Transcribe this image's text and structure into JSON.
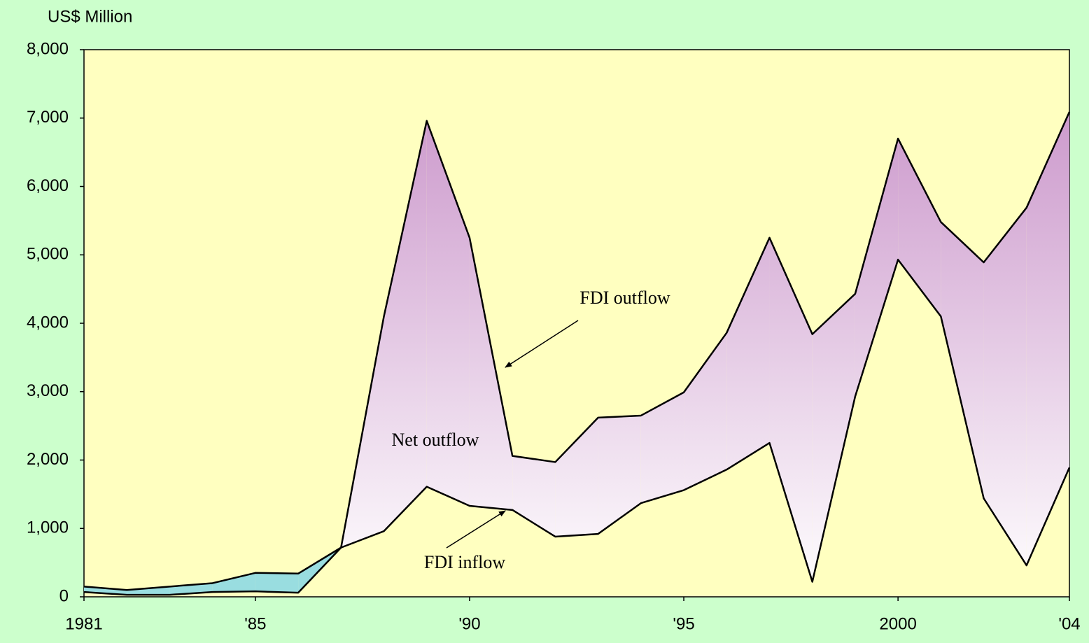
{
  "chart_data": {
    "type": "area_between",
    "y_axis_label": "US$ Million",
    "x": [
      1981,
      1982,
      1983,
      1984,
      1985,
      1986,
      1987,
      1988,
      1989,
      1990,
      1991,
      1992,
      1993,
      1994,
      1995,
      1996,
      1997,
      1998,
      1999,
      2000,
      2001,
      2002,
      2003,
      2004
    ],
    "series": [
      {
        "name": "FDI outflow",
        "color": "#000000",
        "values": [
          70,
          30,
          30,
          70,
          80,
          60,
          720,
          4100,
          6960,
          5250,
          2060,
          1970,
          2620,
          2650,
          2990,
          3860,
          5250,
          3840,
          4430,
          6700,
          5480,
          4890,
          5690,
          7090
        ]
      },
      {
        "name": "FDI inflow",
        "color": "#000000",
        "values": [
          150,
          100,
          150,
          200,
          350,
          340,
          720,
          960,
          1610,
          1330,
          1270,
          880,
          920,
          1370,
          1560,
          1860,
          2250,
          220,
          2930,
          4930,
          4100,
          1440,
          460,
          1890
        ]
      }
    ],
    "net_outflow_label": "Net outflow",
    "net_outflow_color": "#cc99cc",
    "net_inflow_color": "#99dde0",
    "plot_background": "#ffffc0",
    "xlim": [
      1981,
      2004
    ],
    "xticks": [
      1981,
      {
        "value": 1985,
        "label": "'85"
      },
      {
        "value": 1990,
        "label": "'90"
      },
      {
        "value": 1995,
        "label": "'95"
      },
      2000,
      {
        "value": 2004,
        "label": "'04"
      }
    ],
    "ylim": [
      0,
      8000
    ],
    "yticks": [
      0,
      {
        "value": 1000,
        "label": "1,000"
      },
      {
        "value": 2000,
        "label": "2,000"
      },
      {
        "value": 3000,
        "label": "3,000"
      },
      {
        "value": 4000,
        "label": "4,000"
      },
      {
        "value": 5000,
        "label": "5,000"
      },
      {
        "value": 6000,
        "label": "6,000"
      },
      {
        "value": 7000,
        "label": "7,000"
      },
      {
        "value": 8000,
        "label": "8,000"
      }
    ]
  }
}
